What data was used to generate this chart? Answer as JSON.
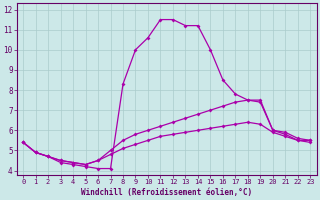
{
  "xlabel": "Windchill (Refroidissement éolien,°C)",
  "background_color": "#cce8e8",
  "grid_color": "#aacccc",
  "line_color": "#aa00aa",
  "spine_color": "#660066",
  "tick_color": "#660066",
  "xlim_min": -0.5,
  "xlim_max": 23.5,
  "ylim_min": 3.8,
  "ylim_max": 12.3,
  "xticks": [
    0,
    1,
    2,
    3,
    4,
    5,
    6,
    7,
    8,
    9,
    10,
    11,
    12,
    13,
    14,
    15,
    16,
    17,
    18,
    19,
    20,
    21,
    22,
    23
  ],
  "yticks": [
    4,
    5,
    6,
    7,
    8,
    9,
    10,
    11,
    12
  ],
  "series1_x": [
    0,
    1,
    2,
    3,
    4,
    5,
    6,
    7,
    8,
    9,
    10,
    11,
    12,
    13,
    14,
    15,
    16,
    17,
    18,
    19,
    20,
    21,
    22,
    23
  ],
  "series1_y": [
    5.4,
    4.9,
    4.7,
    4.4,
    4.3,
    4.2,
    4.1,
    4.1,
    8.3,
    10.0,
    10.6,
    11.5,
    11.5,
    11.2,
    11.2,
    10.0,
    8.5,
    7.8,
    7.5,
    7.5,
    6.0,
    5.8,
    5.5,
    5.5
  ],
  "series2_x": [
    0,
    1,
    2,
    3,
    4,
    5,
    6,
    7,
    8,
    9,
    10,
    11,
    12,
    13,
    14,
    15,
    16,
    17,
    18,
    19,
    20,
    21,
    22,
    23
  ],
  "series2_y": [
    5.4,
    4.9,
    4.7,
    4.5,
    4.4,
    4.3,
    4.5,
    5.0,
    5.5,
    5.8,
    6.0,
    6.2,
    6.4,
    6.6,
    6.8,
    7.0,
    7.2,
    7.4,
    7.5,
    7.4,
    6.0,
    5.9,
    5.6,
    5.5
  ],
  "series3_x": [
    0,
    1,
    2,
    3,
    4,
    5,
    6,
    7,
    8,
    9,
    10,
    11,
    12,
    13,
    14,
    15,
    16,
    17,
    18,
    19,
    20,
    21,
    22,
    23
  ],
  "series3_y": [
    5.4,
    4.9,
    4.7,
    4.5,
    4.4,
    4.3,
    4.5,
    4.8,
    5.1,
    5.3,
    5.5,
    5.7,
    5.8,
    5.9,
    6.0,
    6.1,
    6.2,
    6.3,
    6.4,
    6.3,
    5.9,
    5.7,
    5.5,
    5.4
  ],
  "xlabel_fontsize": 5.5,
  "tick_fontsize": 5.0
}
